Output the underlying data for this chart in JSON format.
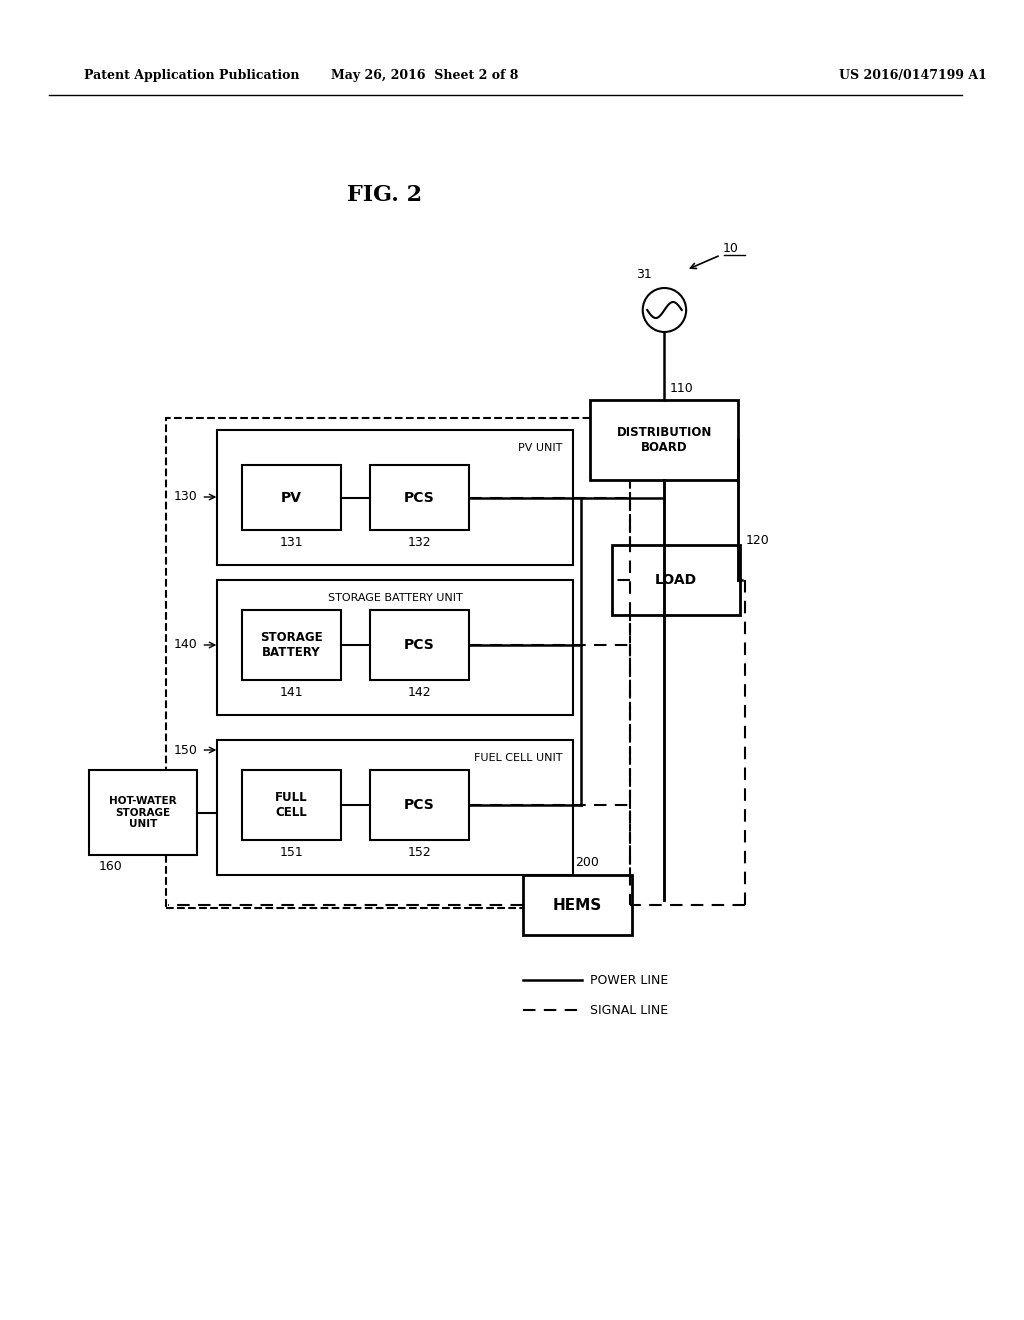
{
  "title": "FIG. 2",
  "header_left": "Patent Application Publication",
  "header_center": "May 26, 2016  Sheet 2 of 8",
  "header_right": "US 2016/0147199 A1",
  "background_color": "#ffffff",
  "text_color": "#000000",
  "label_10": "10",
  "label_31": "31",
  "label_110": "110",
  "label_120": "120",
  "label_130": "130",
  "label_131": "131",
  "label_132": "132",
  "label_140": "140",
  "label_141": "141",
  "label_142": "142",
  "label_150": "150",
  "label_151": "151",
  "label_152": "152",
  "label_160": "160",
  "label_200": "200",
  "box_dist_board": "DISTRIBUTION\nBOARD",
  "box_load": "LOAD",
  "box_hems": "HEMS",
  "box_pv_unit_label": "PV UNIT",
  "box_pv": "PV",
  "box_pcs1": "PCS",
  "box_storage_unit_label": "STORAGE BATTERY UNIT",
  "box_storage_battery": "STORAGE\nBATTERY",
  "box_pcs2": "PCS",
  "box_fuel_unit_label": "FUEL CELL UNIT",
  "box_fuel_cell": "FULL\nCELL",
  "box_pcs3": "PCS",
  "box_hot_water": "HOT-WATER\nSTORAGE\nUNIT",
  "legend_power": "POWER LINE",
  "legend_signal": "SIGNAL LINE"
}
